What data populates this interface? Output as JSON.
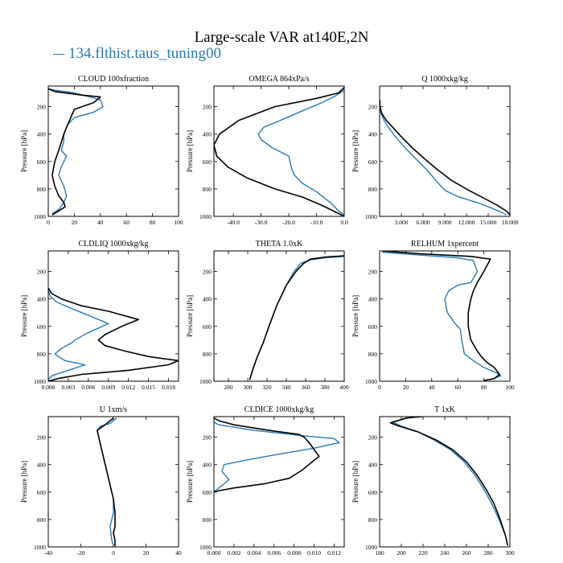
{
  "title": "Large-scale VAR at140E,2N",
  "legend": {
    "label": "134.flthist.taus_tuning00",
    "color": "#2a7ab3"
  },
  "colors": {
    "series_a": "#2a7ab3",
    "series_b": "#000000"
  },
  "chart_data": [
    {
      "type": "line",
      "title": "CLOUD  100xfraction",
      "ylabel": "Pressure [hPa]",
      "xlim": [
        0,
        100
      ],
      "ylim": [
        1000,
        50
      ],
      "xticks": [
        0,
        20,
        40,
        60,
        80,
        100
      ],
      "xtick_labels": [
        "0",
        "20",
        "40",
        "60",
        "80",
        "100"
      ],
      "yticks": [
        200,
        400,
        600,
        800,
        1000
      ],
      "ytick_labels": [
        "200",
        "400",
        "600",
        "800",
        "1000"
      ],
      "series": [
        {
          "color": "#2a7ab3",
          "x": [
            0,
            5,
            20,
            40,
            42,
            35,
            20,
            15,
            12,
            12,
            10,
            14,
            10,
            8,
            12,
            14,
            12,
            8,
            3
          ],
          "y": [
            70,
            80,
            100,
            150,
            200,
            240,
            280,
            330,
            400,
            450,
            520,
            560,
            640,
            700,
            780,
            850,
            900,
            950,
            980
          ]
        },
        {
          "color": "#000000",
          "x": [
            0,
            5,
            25,
            40,
            35,
            20,
            15,
            12,
            10,
            8,
            5,
            3,
            5,
            8,
            12,
            13,
            8,
            3
          ],
          "y": [
            70,
            90,
            115,
            130,
            170,
            220,
            330,
            400,
            460,
            520,
            600,
            700,
            780,
            850,
            900,
            930,
            960,
            990
          ]
        }
      ]
    },
    {
      "type": "line",
      "title": "OMEGA  864xPa/s",
      "ylabel": "Pressure [hPa]",
      "xlim": [
        -47,
        0
      ],
      "ylim": [
        1000,
        50
      ],
      "xticks": [
        -40,
        -30,
        -20,
        -10,
        0
      ],
      "xtick_labels": [
        "-40.0",
        "-30.0",
        "-20.0",
        "-10.0",
        "0.0"
      ],
      "yticks": [
        200,
        400,
        600,
        800,
        1000
      ],
      "ytick_labels": [
        "200",
        "400",
        "600",
        "800",
        "1000"
      ],
      "series": [
        {
          "color": "#2a7ab3",
          "x": [
            0,
            -3,
            -8,
            -15,
            -23,
            -29,
            -31,
            -30,
            -26,
            -20,
            -19,
            -18,
            -15,
            -10,
            -5,
            -2,
            0
          ],
          "y": [
            80,
            120,
            170,
            230,
            300,
            350,
            400,
            440,
            500,
            560,
            650,
            700,
            760,
            820,
            900,
            960,
            990
          ]
        },
        {
          "color": "#000000",
          "x": [
            0,
            -2,
            -10,
            -25,
            -38,
            -45,
            -47,
            -46,
            -42,
            -35,
            -25,
            -15,
            -8,
            -3,
            0
          ],
          "y": [
            60,
            100,
            140,
            200,
            300,
            400,
            480,
            560,
            640,
            720,
            800,
            860,
            920,
            970,
            1000
          ]
        }
      ]
    },
    {
      "type": "line",
      "title": "Q  1000xkg/kg",
      "ylabel": "Pressure [hPa]",
      "xlim": [
        0,
        18
      ],
      "ylim": [
        1000,
        50
      ],
      "xticks": [
        3,
        6,
        9,
        12,
        15,
        18
      ],
      "xtick_labels": [
        "3.000",
        "6.000",
        "9.000",
        "12.000",
        "15.000",
        "18.000"
      ],
      "yticks": [
        200,
        400,
        600,
        800,
        1000
      ],
      "ytick_labels": [
        "200",
        "400",
        "600",
        "800",
        "1000"
      ],
      "series": [
        {
          "color": "#2a7ab3",
          "x": [
            0.03,
            0.05,
            0.2,
            0.6,
            1.2,
            2.2,
            3.5,
            5.0,
            6.5,
            7.8,
            9.0,
            11.0,
            13.5,
            15.5,
            17.0,
            17.5
          ],
          "y": [
            150,
            200,
            250,
            300,
            350,
            420,
            500,
            580,
            660,
            740,
            810,
            860,
            900,
            940,
            975,
            990
          ]
        },
        {
          "color": "#000000",
          "x": [
            0.03,
            0.05,
            0.3,
            0.9,
            1.8,
            3.0,
            4.5,
            6.2,
            8.0,
            10.0,
            12.3,
            14.5,
            16.3,
            17.6,
            18.0
          ],
          "y": [
            150,
            200,
            250,
            300,
            350,
            420,
            500,
            580,
            660,
            740,
            810,
            870,
            920,
            965,
            990
          ]
        }
      ]
    },
    {
      "type": "line",
      "title": "CLDLIQ  1000xkg/kg",
      "ylabel": "Pressure [hPa]",
      "xlim": [
        0,
        0.0195
      ],
      "ylim": [
        1000,
        50
      ],
      "xticks": [
        0,
        0.003,
        0.006,
        0.009,
        0.012,
        0.015,
        0.018
      ],
      "xtick_labels": [
        "0.000",
        "0.003",
        "0.006",
        "0.009",
        "0.012",
        "0.015",
        "0.018"
      ],
      "yticks": [
        200,
        400,
        600,
        800,
        1000
      ],
      "ytick_labels": [
        "200",
        "400",
        "600",
        "800",
        "1000"
      ],
      "series": [
        {
          "color": "#2a7ab3",
          "x": [
            0,
            0.0003,
            0.0012,
            0.0025,
            0.005,
            0.009,
            0.0058,
            0.004,
            0.0035,
            0.002,
            0.001,
            0.0015,
            0.0025,
            0.0055,
            0.003,
            0.0005,
            0
          ],
          "y": [
            340,
            380,
            420,
            450,
            500,
            580,
            650,
            700,
            720,
            760,
            800,
            820,
            850,
            880,
            920,
            960,
            990
          ]
        },
        {
          "color": "#000000",
          "x": [
            0,
            0.0005,
            0.002,
            0.005,
            0.009,
            0.0135,
            0.011,
            0.0085,
            0.0075,
            0.0085,
            0.0115,
            0.015,
            0.0195,
            0.018,
            0.012,
            0.005,
            0.0015,
            0
          ],
          "y": [
            320,
            360,
            400,
            450,
            490,
            550,
            600,
            660,
            700,
            740,
            780,
            820,
            850,
            880,
            920,
            950,
            980,
            1000
          ]
        }
      ]
    },
    {
      "type": "line",
      "title": "THETA  1.0xK",
      "ylabel": "Pressure [hPa]",
      "xlim": [
        265,
        400
      ],
      "ylim": [
        1000,
        50
      ],
      "xticks": [
        280,
        300,
        320,
        340,
        360,
        380,
        400
      ],
      "xtick_labels": [
        "280",
        "300",
        "320",
        "340",
        "360",
        "380",
        "400"
      ],
      "yticks": [
        200,
        400,
        600,
        800,
        1000
      ],
      "ytick_labels": [
        "200",
        "400",
        "600",
        "800",
        "1000"
      ],
      "series": [
        {
          "color": "#2a7ab3",
          "x": [
            400,
            380,
            365,
            355,
            348,
            340,
            330,
            322,
            316,
            310,
            305,
            302
          ],
          "y": [
            90,
            100,
            115,
            140,
            200,
            300,
            450,
            600,
            720,
            820,
            920,
            990
          ]
        },
        {
          "color": "#000000",
          "x": [
            400,
            380,
            365,
            358,
            350,
            340,
            330,
            322,
            316,
            310,
            305,
            302
          ],
          "y": [
            85,
            95,
            110,
            140,
            200,
            300,
            450,
            600,
            720,
            820,
            920,
            990
          ]
        }
      ]
    },
    {
      "type": "line",
      "title": "RELHUM  1xpercent",
      "ylabel": "Pressure [hPa]",
      "xlim": [
        0,
        100
      ],
      "ylim": [
        1000,
        50
      ],
      "xticks": [
        0,
        20,
        40,
        60,
        80,
        100
      ],
      "xtick_labels": [
        "0",
        "20",
        "40",
        "60",
        "80",
        "100"
      ],
      "yticks": [
        200,
        400,
        600,
        800,
        1000
      ],
      "ytick_labels": [
        "200",
        "400",
        "600",
        "800",
        "1000"
      ],
      "series": [
        {
          "color": "#2a7ab3",
          "x": [
            2,
            30,
            60,
            72,
            75,
            70,
            60,
            53,
            50,
            52,
            58,
            62,
            63,
            65,
            72,
            80,
            90,
            93,
            85
          ],
          "y": [
            60,
            80,
            100,
            120,
            200,
            280,
            300,
            340,
            400,
            500,
            580,
            620,
            700,
            800,
            850,
            900,
            940,
            960,
            990
          ]
        },
        {
          "color": "#000000",
          "x": [
            2,
            30,
            70,
            85,
            80,
            75,
            72,
            70,
            68,
            68,
            70,
            75,
            78,
            82,
            88,
            92,
            88,
            80
          ],
          "y": [
            50,
            70,
            90,
            110,
            200,
            280,
            340,
            400,
            500,
            600,
            700,
            780,
            820,
            860,
            900,
            950,
            980,
            995
          ]
        }
      ]
    },
    {
      "type": "line",
      "title": "U  1xm/s",
      "ylabel": "Pressure [hPa]",
      "xlim": [
        -40,
        40
      ],
      "ylim": [
        1000,
        50
      ],
      "xticks": [
        -40,
        -20,
        0,
        20,
        40
      ],
      "xtick_labels": [
        "-40",
        "-20",
        "0",
        "20",
        "40"
      ],
      "yticks": [
        200,
        400,
        600,
        800,
        1000
      ],
      "ytick_labels": [
        "200",
        "400",
        "600",
        "800",
        "1000"
      ],
      "series": [
        {
          "color": "#2a7ab3",
          "x": [
            2,
            0,
            -2,
            -8,
            -10,
            -8,
            -6,
            -4,
            -2,
            0,
            0,
            -2,
            -1,
            0
          ],
          "y": [
            60,
            80,
            100,
            120,
            150,
            250,
            350,
            450,
            550,
            650,
            750,
            850,
            950,
            990
          ]
        },
        {
          "color": "#000000",
          "x": [
            0,
            -2,
            -4,
            -10,
            -8,
            -6,
            -4,
            -2,
            0,
            1,
            1,
            0,
            1,
            1
          ],
          "y": [
            60,
            80,
            100,
            150,
            250,
            350,
            450,
            550,
            650,
            750,
            850,
            900,
            950,
            995
          ]
        }
      ]
    },
    {
      "type": "line",
      "title": "CLDICE  1000xkg/kg",
      "ylabel": "Pressure [hPa]",
      "xlim": [
        0,
        0.013
      ],
      "ylim": [
        1000,
        50
      ],
      "xticks": [
        0,
        0.002,
        0.004,
        0.006,
        0.008,
        0.01,
        0.012
      ],
      "xtick_labels": [
        "0.000",
        "0.002",
        "0.004",
        "0.006",
        "0.008",
        "0.010",
        "0.012"
      ],
      "yticks": [
        200,
        400,
        600,
        800,
        1000
      ],
      "ytick_labels": [
        "200",
        "400",
        "600",
        "800",
        "1000"
      ],
      "series": [
        {
          "color": "#2a7ab3",
          "x": [
            0,
            0.0005,
            0.004,
            0.009,
            0.012,
            0.0125,
            0.01,
            0.006,
            0.003,
            0.001,
            0.0008,
            0.0015,
            0.001,
            0.0005,
            0
          ],
          "y": [
            90,
            110,
            150,
            190,
            210,
            240,
            280,
            330,
            370,
            400,
            450,
            510,
            540,
            570,
            600
          ]
        },
        {
          "color": "#000000",
          "x": [
            0,
            0.0005,
            0.002,
            0.0055,
            0.0085,
            0.009,
            0.0095,
            0.0105,
            0.0098,
            0.0088,
            0.0075,
            0.005,
            0.002,
            0.0005,
            0
          ],
          "y": [
            60,
            80,
            110,
            150,
            180,
            200,
            240,
            340,
            380,
            440,
            500,
            540,
            570,
            590,
            600
          ]
        }
      ]
    },
    {
      "type": "line",
      "title": "T  1xK",
      "ylabel": "Pressure [hPa]",
      "xlim": [
        180,
        300
      ],
      "ylim": [
        1000,
        50
      ],
      "xticks": [
        180,
        200,
        220,
        240,
        260,
        280,
        300
      ],
      "xtick_labels": [
        "180",
        "200",
        "220",
        "240",
        "260",
        "280",
        "300"
      ],
      "yticks": [
        200,
        400,
        600,
        800,
        1000
      ],
      "ytick_labels": [
        "200",
        "400",
        "600",
        "800",
        "1000"
      ],
      "series": [
        {
          "color": "#2a7ab3",
          "x": [
            225,
            205,
            192,
            200,
            215,
            230,
            245,
            258,
            268,
            276,
            283,
            290,
            296,
            298
          ],
          "y": [
            45,
            60,
            90,
            120,
            160,
            220,
            290,
            380,
            480,
            580,
            680,
            800,
            920,
            990
          ]
        },
        {
          "color": "#000000",
          "x": [
            225,
            205,
            190,
            198,
            215,
            232,
            247,
            260,
            270,
            278,
            285,
            291,
            296,
            298
          ],
          "y": [
            45,
            60,
            95,
            120,
            160,
            220,
            290,
            380,
            480,
            580,
            680,
            800,
            920,
            990
          ]
        }
      ]
    }
  ]
}
